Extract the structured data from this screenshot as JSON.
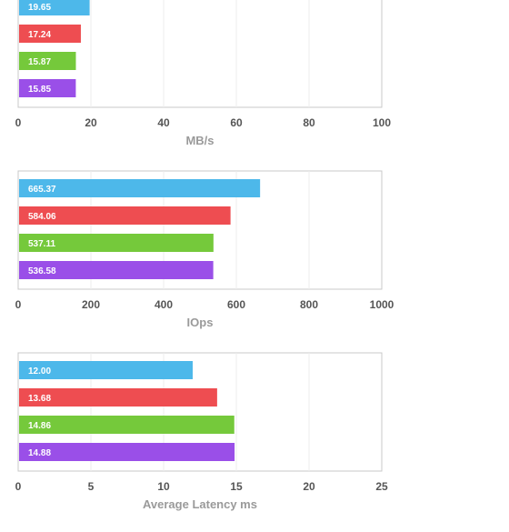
{
  "colors": [
    "#4db8ea",
    "#ee4d51",
    "#75c93b",
    "#9a4fe8"
  ],
  "chart_data": [
    {
      "type": "bar",
      "orientation": "horizontal",
      "values": [
        19.65,
        17.24,
        15.87,
        15.85
      ],
      "labels": [
        "19.65",
        "17.24",
        "15.87",
        "15.85"
      ],
      "xlabel": "MB/s",
      "xlim": [
        0,
        100
      ],
      "xticks": [
        "0",
        "20",
        "40",
        "60",
        "80",
        "100"
      ],
      "grid": true
    },
    {
      "type": "bar",
      "orientation": "horizontal",
      "values": [
        665.37,
        584.06,
        537.11,
        536.58
      ],
      "labels": [
        "665.37",
        "584.06",
        "537.11",
        "536.58"
      ],
      "xlabel": "IOps",
      "xlim": [
        0,
        1000
      ],
      "xticks": [
        "0",
        "200",
        "400",
        "600",
        "800",
        "1000"
      ],
      "grid": true
    },
    {
      "type": "bar",
      "orientation": "horizontal",
      "values": [
        12.0,
        13.68,
        14.86,
        14.88
      ],
      "labels": [
        "12.00",
        "13.68",
        "14.86",
        "14.88"
      ],
      "xlabel": "Average Latency ms",
      "xlim": [
        0,
        25
      ],
      "xticks": [
        "0",
        "5",
        "10",
        "15",
        "20",
        "25"
      ],
      "grid": true
    }
  ]
}
